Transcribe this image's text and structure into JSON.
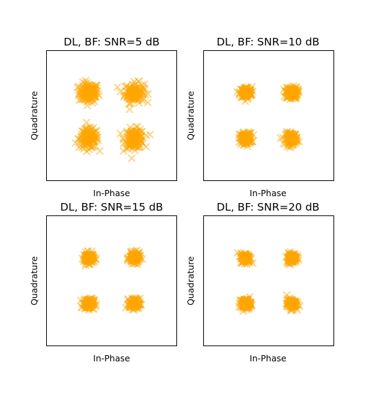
{
  "chart_data": [
    {
      "type": "scatter",
      "title": "DL, BF: SNR=5 dB",
      "xlabel": "In-Phase",
      "ylabel": "Quadrature",
      "xlim": [
        -2,
        2
      ],
      "ylim": [
        -2,
        2
      ],
      "xticks": [],
      "yticks": [],
      "grid": false,
      "series": [
        {
          "color": "#ffa500",
          "marker": "x",
          "points": [
            [
              -0.7,
              0.7
            ],
            [
              0.7,
              0.7
            ],
            [
              -0.7,
              -0.7
            ],
            [
              0.7,
              -0.7
            ]
          ],
          "spread": 0.3
        }
      ]
    },
    {
      "type": "scatter",
      "title": "DL, BF: SNR=10 dB",
      "xlabel": "In-Phase",
      "ylabel": "Quadrature",
      "xlim": [
        -2,
        2
      ],
      "ylim": [
        -2,
        2
      ],
      "xticks": [],
      "yticks": [],
      "grid": false,
      "series": [
        {
          "color": "#ffa500",
          "marker": "x",
          "points": [
            [
              -0.7,
              0.7
            ],
            [
              0.7,
              0.7
            ],
            [
              -0.7,
              -0.7
            ],
            [
              0.7,
              -0.7
            ]
          ],
          "spread": 0.18
        }
      ]
    },
    {
      "type": "scatter",
      "title": "DL, BF: SNR=15 dB",
      "xlabel": "In-Phase",
      "ylabel": "Quadrature",
      "xlim": [
        -2,
        2
      ],
      "ylim": [
        -2,
        2
      ],
      "xticks": [],
      "yticks": [],
      "grid": false,
      "series": [
        {
          "color": "#ffa500",
          "marker": "x",
          "points": [
            [
              -0.7,
              0.7
            ],
            [
              0.7,
              0.7
            ],
            [
              -0.7,
              -0.7
            ],
            [
              0.7,
              -0.7
            ]
          ],
          "spread": 0.16
        }
      ]
    },
    {
      "type": "scatter",
      "title": "DL, BF: SNR=20 dB",
      "xlabel": "In-Phase",
      "ylabel": "Quadrature",
      "xlim": [
        -2,
        2
      ],
      "ylim": [
        -2,
        2
      ],
      "xticks": [],
      "yticks": [],
      "grid": false,
      "series": [
        {
          "color": "#ffa500",
          "marker": "x",
          "points": [
            [
              -0.7,
              0.7
            ],
            [
              0.7,
              0.7
            ],
            [
              -0.7,
              -0.7
            ],
            [
              0.7,
              -0.7
            ]
          ],
          "spread": 0.15
        }
      ]
    }
  ]
}
